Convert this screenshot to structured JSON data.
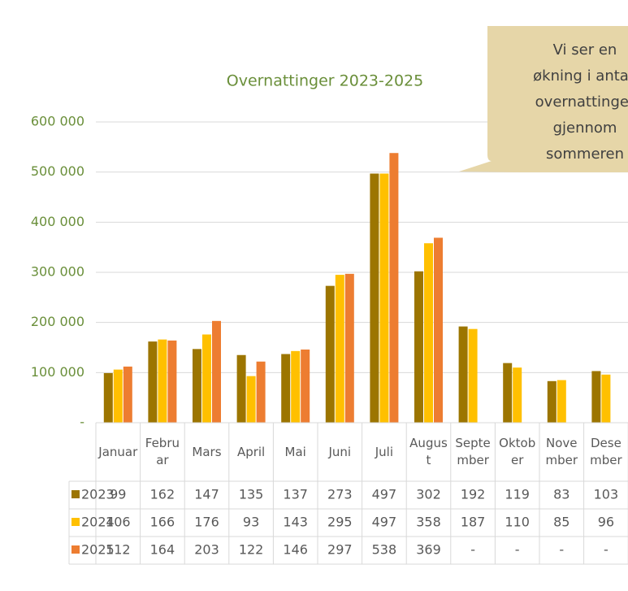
{
  "chart_data": {
    "type": "bar",
    "title": "Overnattinger 2023-2025",
    "annotation": [
      "Vi ser en",
      "økning i antall",
      "overnattinger",
      "gjennom",
      "sommeren"
    ],
    "categories": [
      "Januar",
      "Februar",
      "Mars",
      "April",
      "Mai",
      "Juni",
      "Juli",
      "August",
      "September",
      "Oktober",
      "November",
      "Desember"
    ],
    "series": [
      {
        "name": "2023",
        "color": "#9c7500",
        "values": [
          99000,
          162000,
          147000,
          135000,
          137000,
          273000,
          497000,
          302000,
          192000,
          119000,
          83000,
          103000
        ],
        "value_labels": [
          "99",
          "162",
          "147",
          "135",
          "137",
          "273",
          "497",
          "302",
          "192",
          "119",
          "83",
          "103"
        ]
      },
      {
        "name": "2024",
        "color": "#ffc000",
        "values": [
          106000,
          166000,
          176000,
          93000,
          143000,
          295000,
          497000,
          358000,
          187000,
          110000,
          85000,
          96000
        ],
        "value_labels": [
          "106",
          "166",
          "176",
          "93",
          "143",
          "295",
          "497",
          "358",
          "187",
          "110",
          "85",
          "96"
        ]
      },
      {
        "name": "2025",
        "color": "#ed7d31",
        "values": [
          112000,
          164000,
          203000,
          122000,
          146000,
          297000,
          538000,
          369000,
          null,
          null,
          null,
          null
        ],
        "value_labels": [
          "112",
          "164",
          "203",
          "122",
          "146",
          "297",
          "538",
          "369",
          "-",
          "-",
          "-",
          "-"
        ]
      }
    ],
    "ylim": [
      0,
      600000
    ],
    "yticks": [
      {
        "value": 0,
        "label": "-"
      },
      {
        "value": 100000,
        "label": "100 000"
      },
      {
        "value": 200000,
        "label": "200 000"
      },
      {
        "value": 300000,
        "label": "300 000"
      },
      {
        "value": 400000,
        "label": "400 000"
      },
      {
        "value": 500000,
        "label": "500 000"
      },
      {
        "value": 600000,
        "label": "600 000"
      }
    ],
    "grid": true
  }
}
